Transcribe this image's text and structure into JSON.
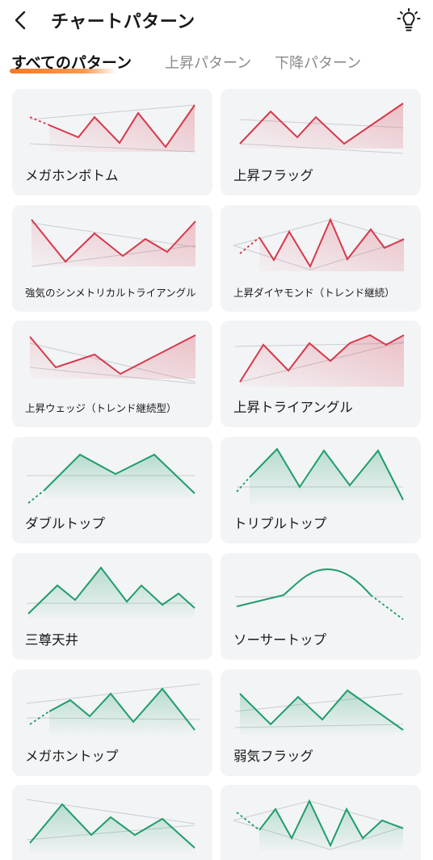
{
  "header": {
    "title": "チャートパターン",
    "back_icon": "chevron-left-icon",
    "tips_icon": "lightbulb-icon"
  },
  "tabs": [
    {
      "label": "すべてのパターン",
      "active": true
    },
    {
      "label": "上昇パターン",
      "active": false
    },
    {
      "label": "下降パターン",
      "active": false
    }
  ],
  "colors": {
    "bullish": "#d6394b",
    "bearish": "#1f9d6a",
    "card_bg": "#f3f4f6",
    "accent": "#f07a2a"
  },
  "patterns": [
    {
      "label": "メガホンボトム",
      "trend": "up",
      "small": false
    },
    {
      "label": "上昇フラッグ",
      "trend": "up",
      "small": false
    },
    {
      "label": "強気のシンメトリカルトライアングル",
      "trend": "up",
      "small": true
    },
    {
      "label": "上昇ダイヤモンド（トレンド継続）",
      "trend": "up",
      "small": true
    },
    {
      "label": "上昇ウェッジ（トレンド継続型）",
      "trend": "up",
      "small": true
    },
    {
      "label": "上昇トライアングル",
      "trend": "up",
      "small": false
    },
    {
      "label": "ダブルトップ",
      "trend": "down",
      "small": false
    },
    {
      "label": "トリプルトップ",
      "trend": "down",
      "small": false
    },
    {
      "label": "三尊天井",
      "trend": "down",
      "small": false
    },
    {
      "label": "ソーサートップ",
      "trend": "down",
      "small": false
    },
    {
      "label": "メガホントップ",
      "trend": "down",
      "small": false
    },
    {
      "label": "弱気フラッグ",
      "trend": "down",
      "small": false
    },
    {
      "label": "",
      "trend": "down",
      "small": false
    },
    {
      "label": "",
      "trend": "down",
      "small": false
    }
  ]
}
